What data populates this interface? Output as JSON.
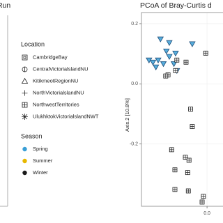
{
  "chart_data": {
    "type": "scatter",
    "left_panel_title": "Run",
    "title": "PCoA of Bray-Curtis d",
    "y_label": "Axis.2  [10.8%]",
    "xlim": [
      -0.2,
      0.07
    ],
    "ylim": [
      -0.407,
      0.237
    ],
    "xticks": [
      {
        "value": 0,
        "label": "0.0"
      }
    ],
    "yticks": [
      0.2,
      {
        "value": 0,
        "label": "0.0"
      },
      -0.2
    ],
    "grid": true,
    "location_legend_title": "Location",
    "locations": [
      "CambridgeBay",
      "CentralVictorialslandNU",
      "KitikmeotRegionNU",
      "NorthVictorialslandNU",
      "NorthwestTerritories",
      "UlukhktokVictorialslandNWT"
    ],
    "season_legend_title": "Season",
    "series": [
      {
        "name": "Spring",
        "color": "#3a9fd6",
        "shape": "triangle",
        "x": [
          -0.142,
          -0.115,
          -0.165,
          -0.149,
          -0.133,
          -0.115,
          -0.096,
          -0.124,
          -0.156,
          -0.101,
          -0.045,
          -0.177,
          -0.092
        ],
        "values": [
          0.149,
          0.137,
          0.072,
          0.079,
          0.067,
          0.091,
          0.102,
          0.109,
          0.056,
          0.067,
          0.133,
          0.079,
          0.044
        ]
      },
      {
        "name": "Summer",
        "color": "#e7b800",
        "shape": "circle",
        "x": [],
        "values": []
      },
      {
        "name": "Winter",
        "color": "#1a1a1a",
        "shape": "square-plus",
        "x": [
          -0.004,
          -0.064,
          -0.092,
          -0.096,
          -0.119,
          -0.126,
          -0.05,
          -0.045,
          -0.108,
          -0.066,
          -0.055,
          -0.098,
          -0.059,
          -0.098,
          -0.057,
          -0.011,
          -0.015
        ],
        "values": [
          0.102,
          0.072,
          0.079,
          0.044,
          0.03,
          0.026,
          -0.084,
          -0.142,
          -0.219,
          -0.244,
          -0.254,
          -0.286,
          -0.295,
          -0.351,
          -0.356,
          -0.374,
          -0.393
        ]
      }
    ]
  }
}
